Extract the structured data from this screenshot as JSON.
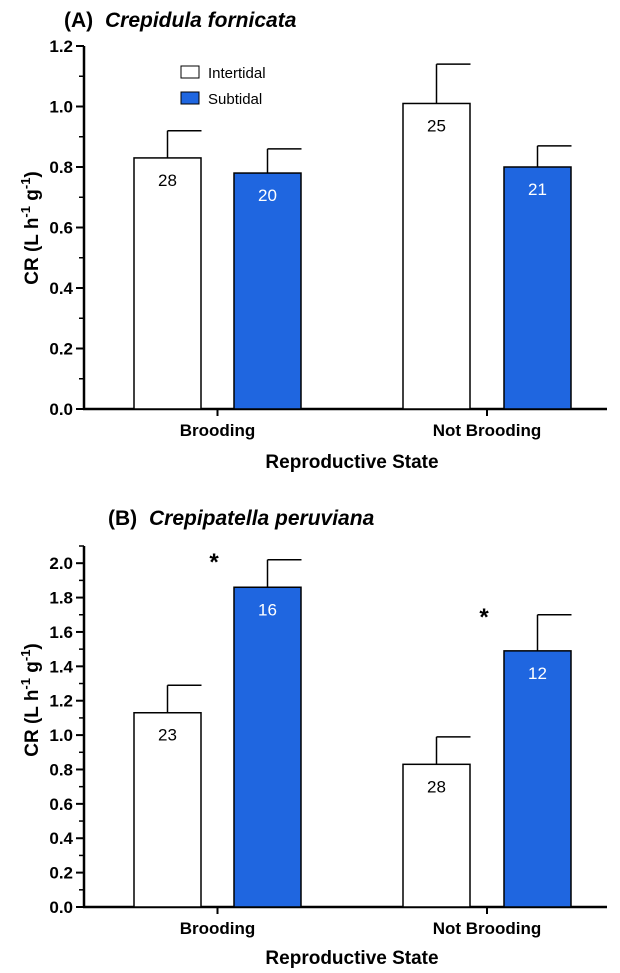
{
  "chart_data": [
    {
      "type": "bar",
      "title_prefix": "(A)",
      "title_species": "Crepidula fornicata",
      "xlabel": "Reproductive State",
      "ylabel_main": "CR (L h",
      "ylabel_sup1": "-1",
      "ylabel_mid": " g",
      "ylabel_sup2": "-1",
      "ylabel_end": ")",
      "categories": [
        "Brooding",
        "Not Brooding"
      ],
      "ylim": [
        0,
        1.2
      ],
      "yticks": [
        "0.0",
        "0.2",
        "0.4",
        "0.6",
        "0.8",
        "1.0",
        "1.2"
      ],
      "ytick_values": [
        0,
        0.2,
        0.4,
        0.6,
        0.8,
        1.0,
        1.2
      ],
      "legend": [
        "Intertidal",
        "Subtidal"
      ],
      "series": [
        {
          "name": "Intertidal",
          "values": [
            0.83,
            1.01
          ],
          "errors": [
            0.09,
            0.13
          ],
          "n": [
            "28",
            "25"
          ],
          "color": "#ffffff",
          "label_color": "#000000"
        },
        {
          "name": "Subtidal",
          "values": [
            0.78,
            0.8
          ],
          "errors": [
            0.08,
            0.07
          ],
          "n": [
            "20",
            "21"
          ],
          "color": "#1f66e0",
          "label_color": "#ffffff"
        }
      ],
      "significance": [
        "",
        ""
      ]
    },
    {
      "type": "bar",
      "title_prefix": "(B)",
      "title_species": "Crepipatella peruviana",
      "xlabel": "Reproductive State",
      "ylabel_main": "CR (L h",
      "ylabel_sup1": "-1",
      "ylabel_mid": " g",
      "ylabel_sup2": "-1",
      "ylabel_end": ")",
      "categories": [
        "Brooding",
        "Not Brooding"
      ],
      "ylim": [
        0,
        2.1
      ],
      "yticks": [
        "0.0",
        "0.2",
        "0.4",
        "0.6",
        "0.8",
        "1.0",
        "1.2",
        "1.4",
        "1.6",
        "1.8",
        "2.0"
      ],
      "ytick_values": [
        0,
        0.2,
        0.4,
        0.6,
        0.8,
        1.0,
        1.2,
        1.4,
        1.6,
        1.8,
        2.0
      ],
      "series": [
        {
          "name": "Intertidal",
          "values": [
            1.13,
            0.83
          ],
          "errors": [
            0.16,
            0.16
          ],
          "n": [
            "23",
            "28"
          ],
          "color": "#ffffff",
          "label_color": "#000000"
        },
        {
          "name": "Subtidal",
          "values": [
            1.86,
            1.49
          ],
          "errors": [
            0.16,
            0.21
          ],
          "n": [
            "16",
            "12"
          ],
          "color": "#1f66e0",
          "label_color": "#ffffff"
        }
      ],
      "significance": [
        "*",
        "*"
      ]
    }
  ]
}
